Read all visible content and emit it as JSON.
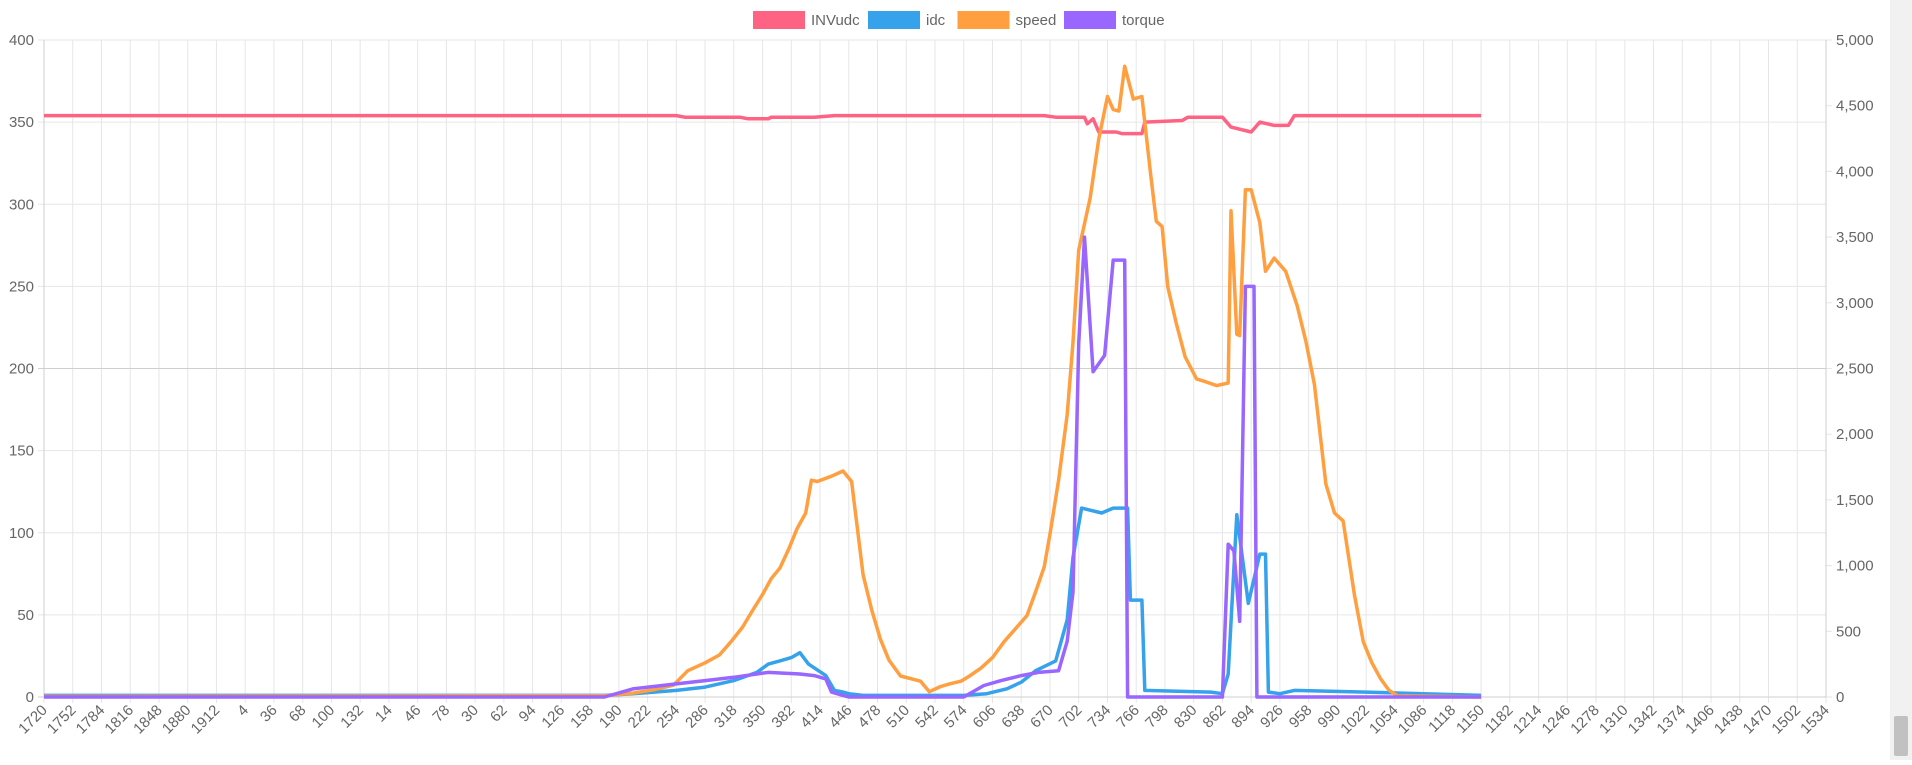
{
  "chart_data": {
    "type": "line",
    "legend_position": "top",
    "grid": true,
    "x_labels_shown": [
      "1720",
      "1752",
      "1784",
      "1816",
      "1848",
      "1880",
      "1912",
      "4",
      "36",
      "68",
      "100",
      "132",
      "14",
      "46",
      "78",
      "30",
      "62",
      "94",
      "126",
      "158",
      "190",
      "222",
      "254",
      "286",
      "318",
      "350",
      "382",
      "414",
      "446",
      "478",
      "510",
      "542",
      "574",
      "606",
      "638",
      "670",
      "702",
      "734",
      "766",
      "798",
      "830",
      "862",
      "894",
      "926",
      "958",
      "990",
      "1022",
      "1054",
      "1086",
      "1118",
      "1150",
      "1182",
      "1214",
      "1246",
      "1278",
      "1310",
      "1342",
      "1374",
      "1406",
      "1438",
      "1470",
      "1502",
      "1534"
    ],
    "y_left": {
      "min": 0,
      "max": 400,
      "ticks": [
        "0",
        "50",
        "100",
        "150",
        "200",
        "250",
        "300",
        "350",
        "400"
      ]
    },
    "y_right": {
      "min": 0,
      "max": 5000,
      "ticks": [
        "0",
        "500",
        "1,000",
        "1,500",
        "2,000",
        "2,500",
        "3,000",
        "3,500",
        "4,000",
        "4,500",
        "5,000"
      ]
    },
    "data_label_index_range": [
      0,
      66
    ],
    "series": [
      {
        "name": "INVudc",
        "color": "#ff6384",
        "axis": "left",
        "points": [
          [
            0,
            354
          ],
          [
            22,
            354
          ],
          [
            22.3,
            353
          ],
          [
            24.2,
            353
          ],
          [
            24.5,
            352
          ],
          [
            25.2,
            352
          ],
          [
            25.3,
            353
          ],
          [
            26.8,
            353
          ],
          [
            27.5,
            354
          ],
          [
            34.8,
            354
          ],
          [
            35.2,
            353
          ],
          [
            36.2,
            353
          ],
          [
            36.3,
            349
          ],
          [
            36.5,
            352
          ],
          [
            36.7,
            344
          ],
          [
            37.3,
            344
          ],
          [
            37.5,
            343
          ],
          [
            38.2,
            343
          ],
          [
            38.3,
            350
          ],
          [
            39.6,
            351
          ],
          [
            39.8,
            353
          ],
          [
            41,
            353
          ],
          [
            41.3,
            347
          ],
          [
            42,
            344
          ],
          [
            42.3,
            350
          ],
          [
            42.8,
            348
          ],
          [
            43.3,
            348
          ],
          [
            43.5,
            354
          ],
          [
            50,
            354
          ]
        ]
      },
      {
        "name": "idc",
        "color": "#36a2eb",
        "axis": "left",
        "points": [
          [
            0,
            1
          ],
          [
            19.5,
            1
          ],
          [
            20.5,
            2
          ],
          [
            22,
            4
          ],
          [
            23,
            6
          ],
          [
            24,
            10
          ],
          [
            24.8,
            15
          ],
          [
            25.2,
            20
          ],
          [
            25.6,
            22
          ],
          [
            26,
            24
          ],
          [
            26.3,
            27
          ],
          [
            26.6,
            20
          ],
          [
            27.2,
            13
          ],
          [
            27.5,
            4
          ],
          [
            27.8,
            3
          ],
          [
            28,
            2
          ],
          [
            28.5,
            1
          ],
          [
            29.5,
            1
          ],
          [
            32,
            1
          ],
          [
            32.8,
            2
          ],
          [
            33.5,
            5
          ],
          [
            34,
            9
          ],
          [
            34.5,
            16
          ],
          [
            35.2,
            22
          ],
          [
            35.6,
            47
          ],
          [
            35.8,
            85
          ],
          [
            36.1,
            115
          ],
          [
            36.8,
            112
          ],
          [
            37.2,
            115
          ],
          [
            37.7,
            115
          ],
          [
            37.8,
            59
          ],
          [
            38.2,
            59
          ],
          [
            38.3,
            4
          ],
          [
            40.6,
            3
          ],
          [
            41,
            2
          ],
          [
            41.2,
            14
          ],
          [
            41.5,
            111
          ],
          [
            41.9,
            57
          ],
          [
            42.3,
            87
          ],
          [
            42.5,
            87
          ],
          [
            42.6,
            3
          ],
          [
            43,
            2
          ],
          [
            43.5,
            4
          ],
          [
            46,
            3
          ],
          [
            50,
            1
          ]
        ]
      },
      {
        "name": "speed",
        "color": "#ff9f40",
        "axis": "right",
        "points": [
          [
            0,
            5
          ],
          [
            19.5,
            10
          ],
          [
            20.5,
            30
          ],
          [
            21.2,
            55
          ],
          [
            21.9,
            90
          ],
          [
            22.4,
            200
          ],
          [
            23,
            260
          ],
          [
            23.5,
            320
          ],
          [
            23.9,
            420
          ],
          [
            24.3,
            530
          ],
          [
            24.6,
            640
          ],
          [
            25,
            780
          ],
          [
            25.3,
            900
          ],
          [
            25.6,
            980
          ],
          [
            25.9,
            1120
          ],
          [
            26.2,
            1280
          ],
          [
            26.5,
            1400
          ],
          [
            26.7,
            1650
          ],
          [
            26.9,
            1640
          ],
          [
            27.4,
            1680
          ],
          [
            27.8,
            1720
          ],
          [
            28.1,
            1640
          ],
          [
            28.5,
            930
          ],
          [
            28.8,
            660
          ],
          [
            29.1,
            440
          ],
          [
            29.4,
            280
          ],
          [
            29.8,
            160
          ],
          [
            30.5,
            120
          ],
          [
            30.8,
            40
          ],
          [
            31.2,
            80
          ],
          [
            31.5,
            100
          ],
          [
            31.9,
            120
          ],
          [
            32.2,
            160
          ],
          [
            32.6,
            220
          ],
          [
            33,
            300
          ],
          [
            33.4,
            420
          ],
          [
            33.8,
            520
          ],
          [
            34.2,
            620
          ],
          [
            34.5,
            800
          ],
          [
            34.8,
            990
          ],
          [
            35,
            1240
          ],
          [
            35.3,
            1650
          ],
          [
            35.6,
            2150
          ],
          [
            35.8,
            2700
          ],
          [
            36,
            3400
          ],
          [
            36.4,
            3800
          ],
          [
            36.7,
            4250
          ],
          [
            37,
            4570
          ],
          [
            37.2,
            4470
          ],
          [
            37.4,
            4460
          ],
          [
            37.6,
            4800
          ],
          [
            37.9,
            4550
          ],
          [
            38.2,
            4570
          ],
          [
            38.5,
            3980
          ],
          [
            38.7,
            3620
          ],
          [
            38.9,
            3580
          ],
          [
            39.1,
            3120
          ],
          [
            39.4,
            2840
          ],
          [
            39.7,
            2590
          ],
          [
            40.1,
            2420
          ],
          [
            40.4,
            2400
          ],
          [
            40.8,
            2370
          ],
          [
            41.2,
            2390
          ],
          [
            41.3,
            3700
          ],
          [
            41.5,
            2760
          ],
          [
            41.6,
            2750
          ],
          [
            41.8,
            3860
          ],
          [
            42,
            3860
          ],
          [
            42.3,
            3610
          ],
          [
            42.5,
            3240
          ],
          [
            42.8,
            3340
          ],
          [
            43.2,
            3240
          ],
          [
            43.6,
            2980
          ],
          [
            43.9,
            2710
          ],
          [
            44.2,
            2380
          ],
          [
            44.6,
            1620
          ],
          [
            44.9,
            1400
          ],
          [
            45.2,
            1340
          ],
          [
            45.6,
            770
          ],
          [
            45.9,
            420
          ],
          [
            46.2,
            260
          ],
          [
            46.5,
            140
          ],
          [
            46.8,
            50
          ],
          [
            47.1,
            10
          ],
          [
            50,
            0
          ]
        ]
      },
      {
        "name": "torque",
        "color": "#9966ff",
        "axis": "left",
        "points": [
          [
            0,
            0
          ],
          [
            19.5,
            0
          ],
          [
            20.5,
            5
          ],
          [
            22,
            8
          ],
          [
            23,
            10
          ],
          [
            24,
            12
          ],
          [
            25.2,
            15
          ],
          [
            26.3,
            14
          ],
          [
            26.8,
            13
          ],
          [
            27.2,
            11
          ],
          [
            27.4,
            3
          ],
          [
            27.8,
            1
          ],
          [
            28,
            0
          ],
          [
            29.5,
            0
          ],
          [
            32,
            0
          ],
          [
            32.7,
            7
          ],
          [
            33.3,
            10
          ],
          [
            34,
            13
          ],
          [
            34.6,
            15
          ],
          [
            35.3,
            16
          ],
          [
            35.6,
            34
          ],
          [
            35.8,
            64
          ],
          [
            36,
            215
          ],
          [
            36.2,
            280
          ],
          [
            36.5,
            198
          ],
          [
            36.9,
            208
          ],
          [
            37.2,
            266
          ],
          [
            37.6,
            266
          ],
          [
            37.7,
            0
          ],
          [
            41,
            0
          ],
          [
            41.2,
            93
          ],
          [
            41.4,
            89
          ],
          [
            41.6,
            46
          ],
          [
            41.8,
            250
          ],
          [
            42.1,
            250
          ],
          [
            42.2,
            0
          ],
          [
            50,
            0
          ]
        ]
      }
    ]
  }
}
